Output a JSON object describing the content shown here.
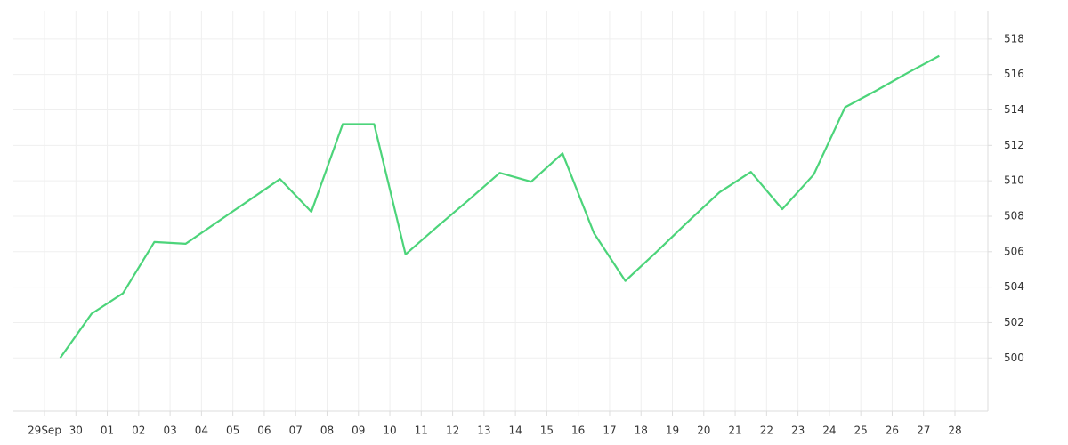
{
  "chart_data": {
    "type": "line",
    "categories": [
      "29Sep",
      "30",
      "01",
      "02",
      "03",
      "04",
      "05",
      "06",
      "07",
      "08",
      "09",
      "10",
      "11",
      "12",
      "13",
      "14",
      "15",
      "16",
      "17",
      "18",
      "19",
      "20",
      "21",
      "22",
      "23",
      "24",
      "25",
      "26",
      "27",
      "28"
    ],
    "series": [
      {
        "color": "#4cd47a",
        "values": [
          500.0,
          502.5,
          503.65,
          506.55,
          506.45,
          507.67,
          508.88,
          510.1,
          508.25,
          513.2,
          513.2,
          505.85,
          507.4,
          508.9,
          510.45,
          509.95,
          511.55,
          507.05,
          504.35,
          506.0,
          507.7,
          509.35,
          510.5,
          508.4,
          510.35,
          514.15,
          515.1,
          516.1,
          517.05,
          null
        ]
      }
    ],
    "ylim": [
      497,
      519.6
    ],
    "yticks": [
      500,
      502,
      504,
      506,
      508,
      510,
      512,
      514,
      516,
      518
    ],
    "grid": true
  }
}
